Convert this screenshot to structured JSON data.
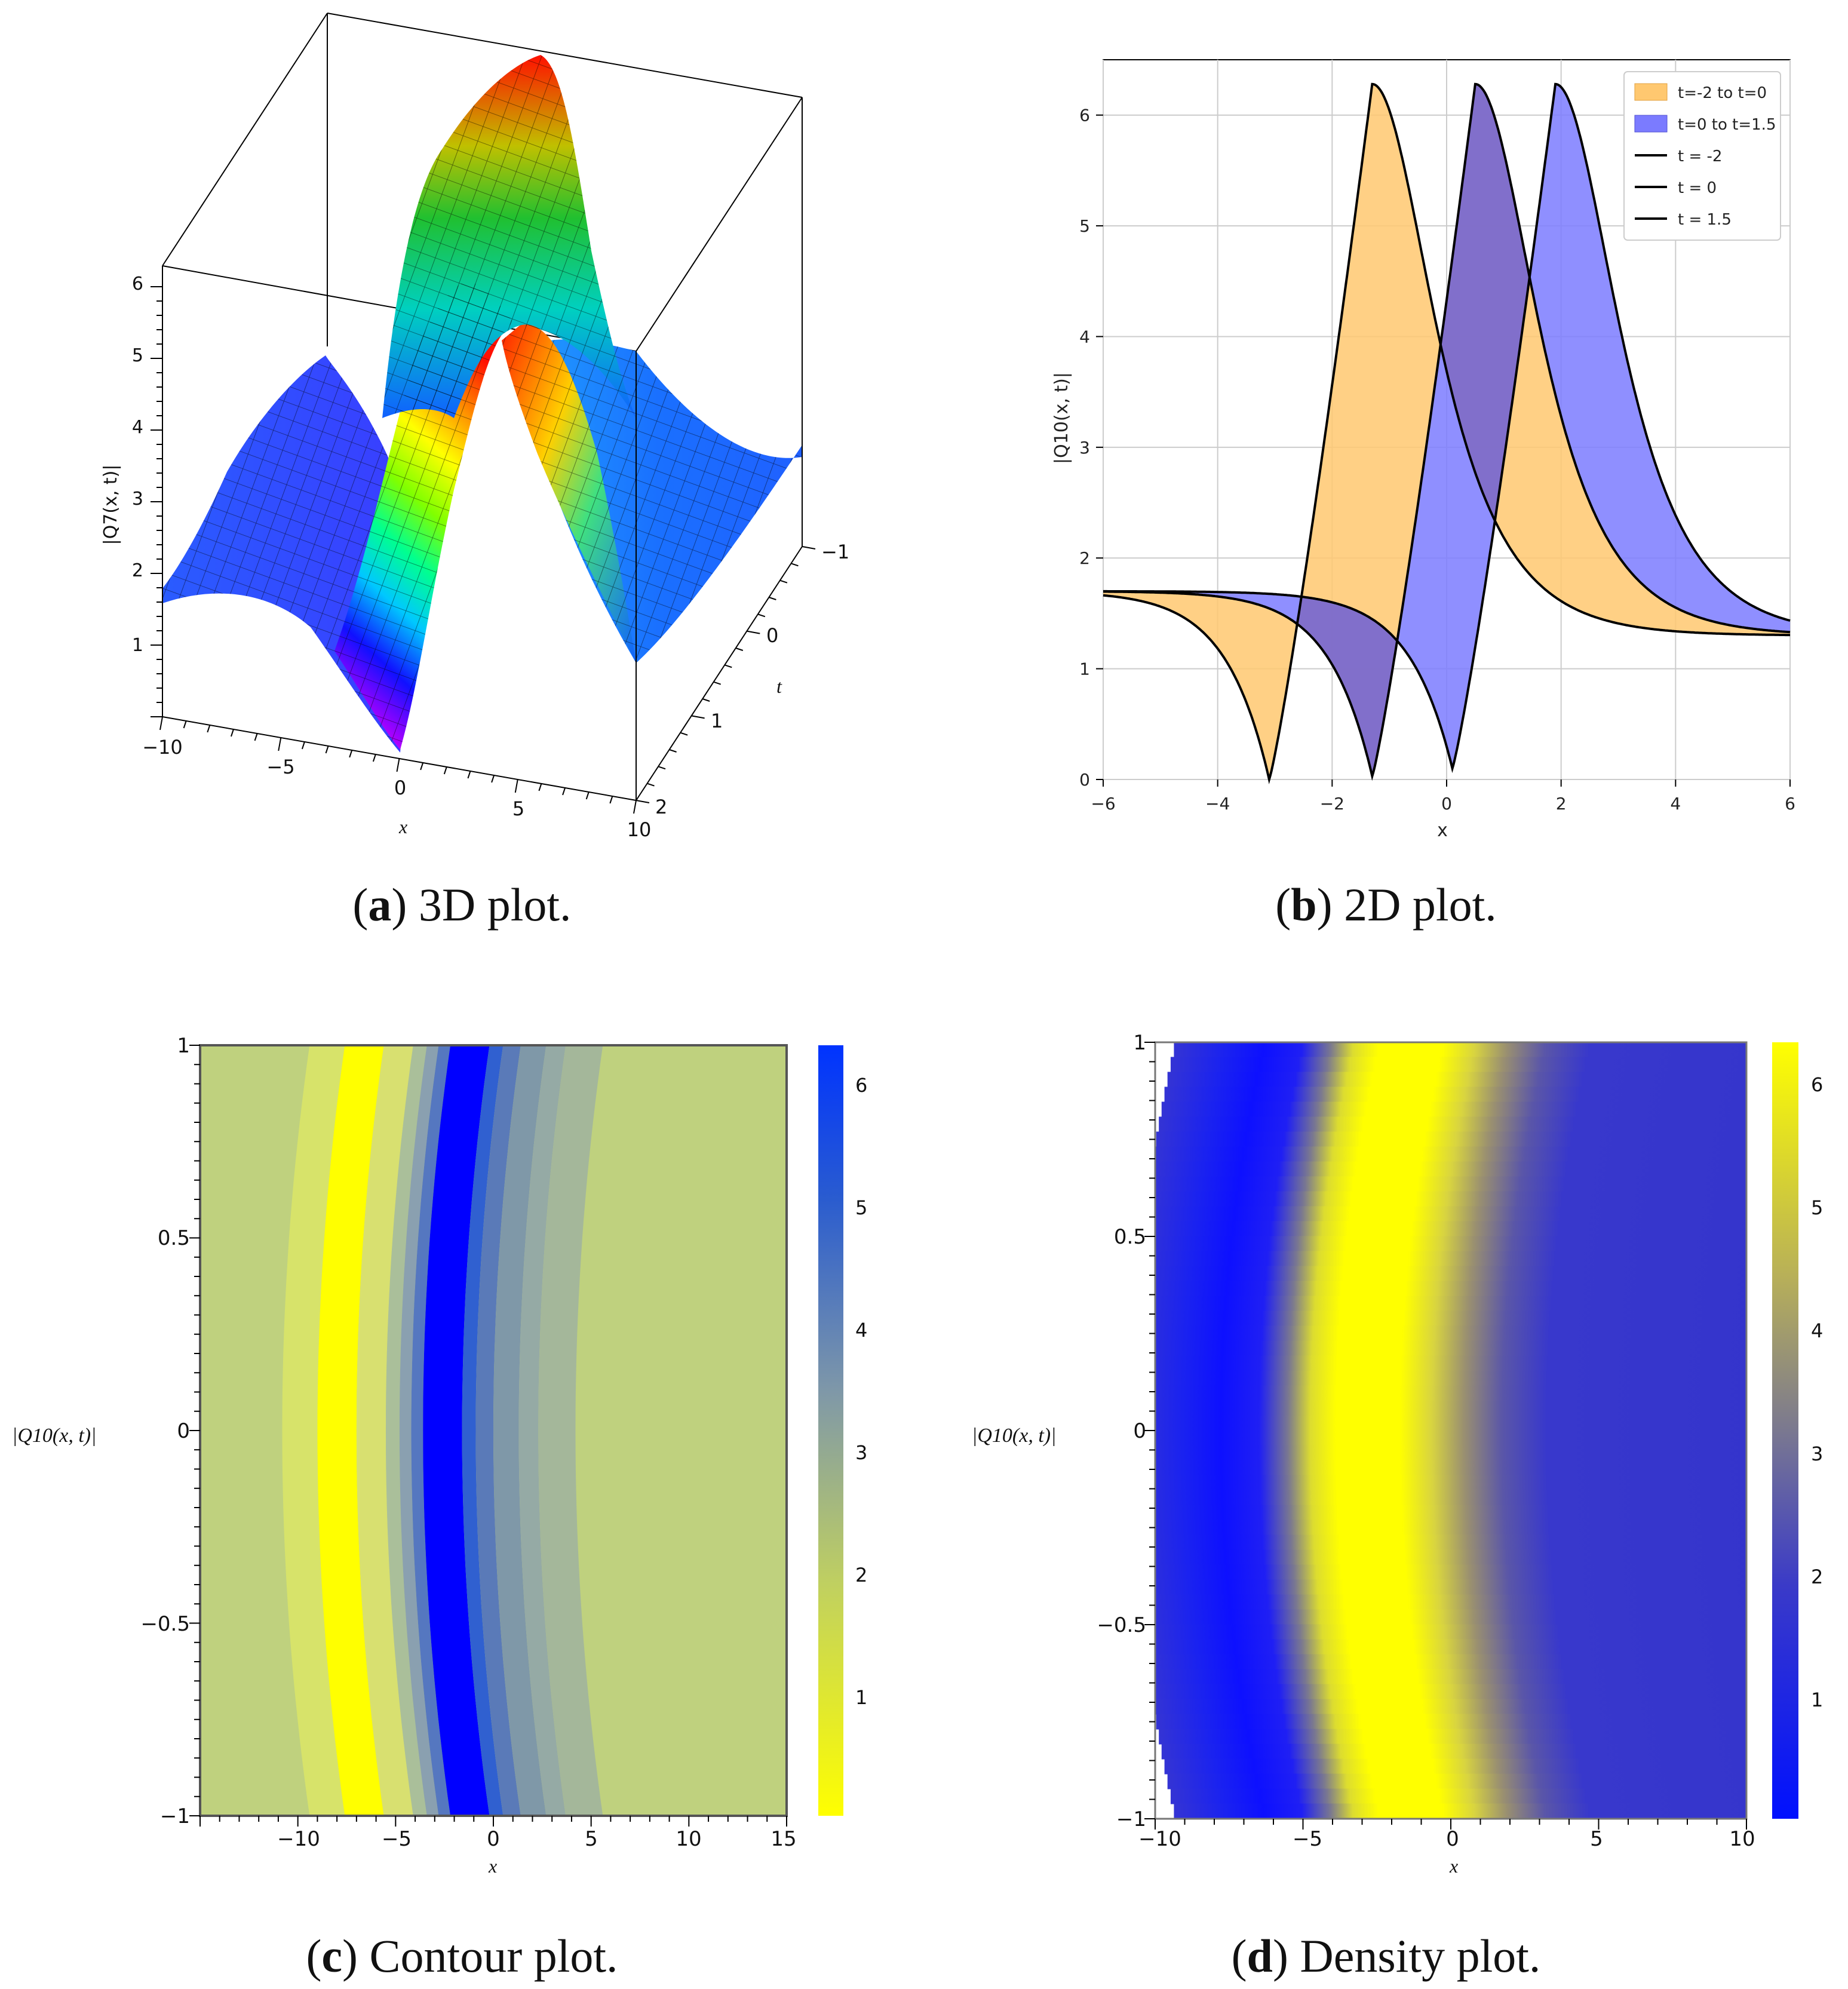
{
  "captions": {
    "a": {
      "letter": "a",
      "text": " 3D plot."
    },
    "b": {
      "letter": "b",
      "text": " 2D plot."
    },
    "c": {
      "letter": "c",
      "text": " Contour plot."
    },
    "d": {
      "letter": "d",
      "text": " Density plot."
    }
  },
  "chart_data": [
    {
      "id": "a",
      "type": "surface3d",
      "xlabel": "x",
      "ylabel": "t",
      "zlabel": "|Q7(x, t)|",
      "x_ticks": [
        "−10",
        "−5",
        "0",
        "5",
        "10"
      ],
      "t_ticks": [
        "−1",
        "0",
        "1",
        "2"
      ],
      "z_ticks": [
        "1",
        "2",
        "3",
        "4",
        "5",
        "6"
      ],
      "xlim": [
        -10,
        10
      ],
      "tlim": [
        -1,
        2
      ],
      "zlim": [
        0,
        6.3
      ],
      "colormap": "rainbow (magenta low → red high)"
    },
    {
      "id": "b",
      "type": "line",
      "xlabel": "x",
      "ylabel": "|Q10(x, t)|",
      "xlim": [
        -6,
        6
      ],
      "ylim": [
        0,
        6.5
      ],
      "x_ticks": [
        -6,
        -4,
        -2,
        0,
        2,
        4,
        6
      ],
      "y_ticks": [
        0,
        1,
        2,
        3,
        4,
        5,
        6
      ],
      "grid": true,
      "legend_position": "top-right",
      "legend": [
        "t=-2 to t=0",
        "t=0 to t=1.5",
        "t = -2",
        "t = 0",
        "t = 1.5"
      ],
      "fill_colors": [
        "#ffc870",
        "#7b7bff"
      ],
      "overlap_color": "#7f6bc4",
      "series": [
        {
          "name": "t = -2",
          "valley_x": -3.1,
          "peak_x": -1.3,
          "peak_y": 6.28,
          "valley_y": 0.0,
          "left_level": 1.7,
          "right_level": 1.3
        },
        {
          "name": "t = 0",
          "valley_x": -1.3,
          "peak_x": 0.5,
          "peak_y": 6.28,
          "valley_y": 0.03,
          "left_level": 1.7,
          "right_level": 1.3
        },
        {
          "name": "t = 1.5",
          "valley_x": 0.1,
          "peak_x": 1.9,
          "peak_y": 6.28,
          "valley_y": 0.1,
          "left_level": 1.7,
          "right_level": 1.3
        }
      ]
    },
    {
      "id": "c",
      "type": "contour",
      "xlabel": "x",
      "ylabel": "|Q10(x, t)|",
      "xlim": [
        -15,
        15
      ],
      "ylim": [
        -1,
        1
      ],
      "x_ticks": [
        "−10",
        "−5",
        "0",
        "5",
        "10",
        "15"
      ],
      "y_ticks": [
        "1",
        "0.5",
        "0",
        "−0.5",
        "−1"
      ],
      "colorbar_ticks": [
        "1",
        "2",
        "3",
        "4",
        "5",
        "6"
      ],
      "colorbar_range": [
        0,
        6.3
      ],
      "colormap": "yellow (low) → blue (high)"
    },
    {
      "id": "d",
      "type": "heatmap",
      "xlabel": "x",
      "ylabel": "|Q10(x, t)|",
      "xlim": [
        -10,
        10
      ],
      "ylim": [
        -1,
        1
      ],
      "x_ticks": [
        "−10",
        "−5",
        "0",
        "5",
        "10"
      ],
      "y_ticks": [
        "1",
        "0.5",
        "0",
        "−0.5",
        "−1"
      ],
      "colorbar_ticks": [
        "1",
        "2",
        "3",
        "4",
        "5",
        "6"
      ],
      "colorbar_range": [
        0,
        6.3
      ],
      "colormap": "blue (low) → yellow (high)"
    }
  ]
}
